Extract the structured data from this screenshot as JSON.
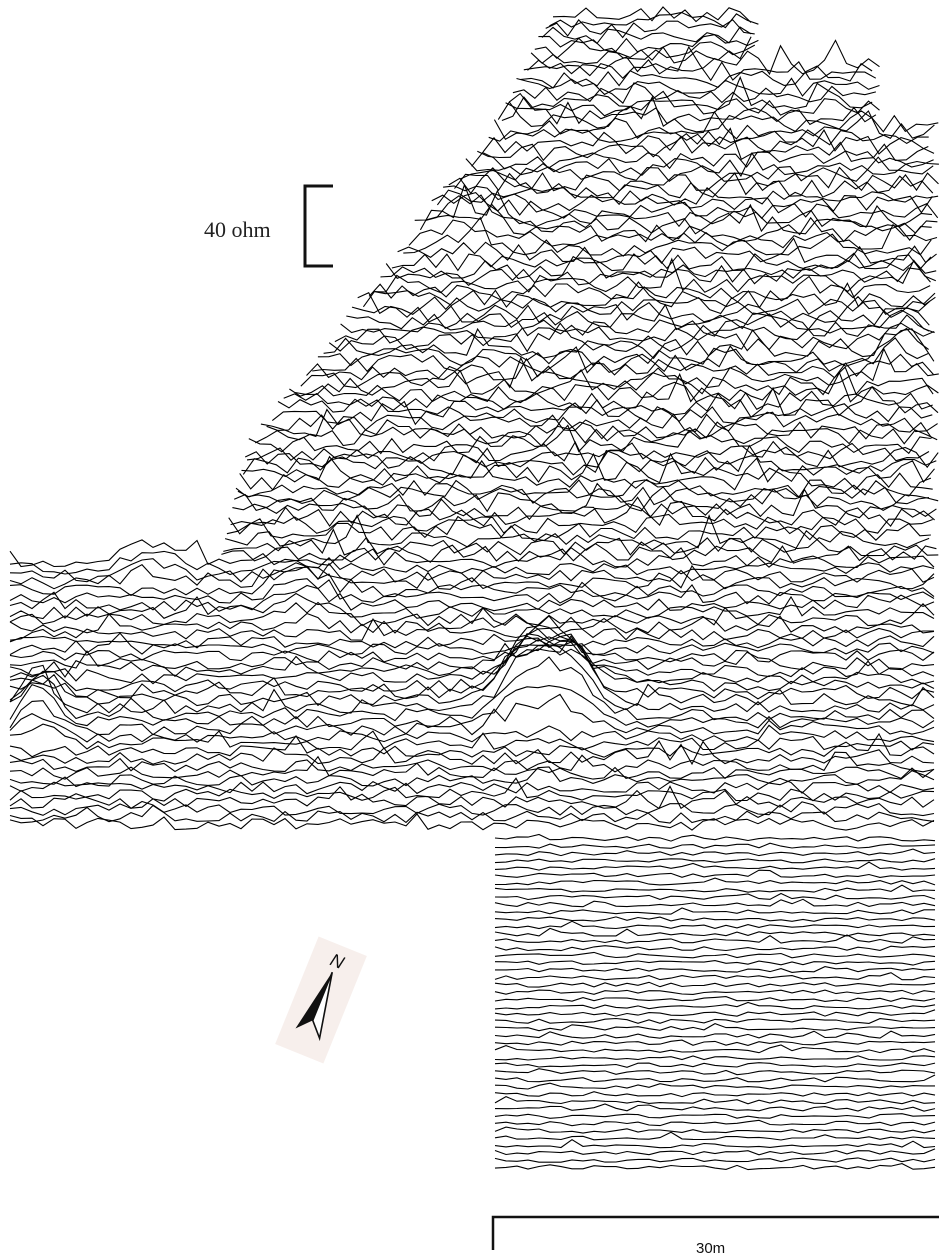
{
  "vertical_scale": {
    "label": "40 ohm"
  },
  "horizontal_scale": {
    "label": "30m"
  },
  "north_arrow": {
    "letter": "N",
    "icon": "north-arrow-icon",
    "background": "#f7efec"
  },
  "traces": {
    "color": "#000000"
  }
}
